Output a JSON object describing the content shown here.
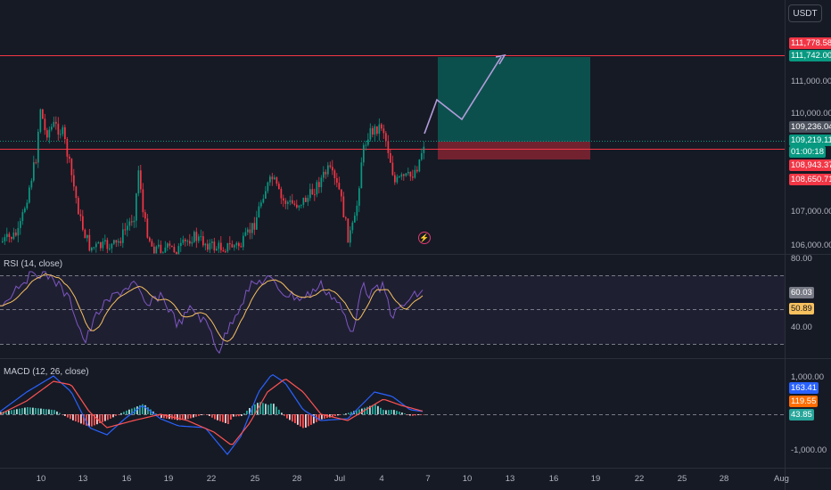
{
  "currency": "USDT",
  "main_pane": {
    "price_axis_labels": [
      "111,000.00",
      "110,000.00",
      "107,000.00",
      "106,000.00"
    ],
    "price_tags": [
      {
        "id": "stop-loss-target",
        "value": "111,778.58",
        "color": "#f23645"
      },
      {
        "id": "take-profit",
        "value": "111,742.00",
        "color": "#089981"
      },
      {
        "id": "entry-line",
        "value": "109,236.04",
        "color": "#4c525e"
      },
      {
        "id": "current-price",
        "value": "109,219.11",
        "color": "#089981"
      },
      {
        "id": "bar-countdown",
        "value": "01:00:18",
        "color": "#089981"
      },
      {
        "id": "stop-loss",
        "value": "108,943.37",
        "color": "#f23645"
      },
      {
        "id": "stop-loss-2",
        "value": "108,650.71",
        "color": "#f23645"
      }
    ],
    "lightning_icon": "lightning-icon"
  },
  "rsi_pane": {
    "title": "RSI (14, close)",
    "axis_labels": [
      "80.00",
      "40.00"
    ],
    "tags": [
      {
        "id": "rsi-value",
        "value": "60.03",
        "color": "#787b86"
      },
      {
        "id": "rsi-ma-value",
        "value": "50.89",
        "color": "#f7c15e",
        "text_color": "#131722"
      }
    ]
  },
  "macd_pane": {
    "title": "MACD (12, 26, close)",
    "axis_labels": [
      "1,000.00",
      "-1,000.00"
    ],
    "tags": [
      {
        "id": "macd-value",
        "value": "163.41",
        "color": "#2962ff"
      },
      {
        "id": "signal-value",
        "value": "119.55",
        "color": "#ff6d00"
      },
      {
        "id": "histogram-value",
        "value": "43.85",
        "color": "#26a69a"
      }
    ]
  },
  "time_axis": {
    "ticks": [
      "10",
      "13",
      "16",
      "19",
      "22",
      "25",
      "28",
      "Jul",
      "4",
      "7",
      "10",
      "13",
      "16",
      "19",
      "22",
      "25",
      "28",
      "Aug"
    ]
  },
  "colors": {
    "up": "#089981",
    "down": "#f23645",
    "rsi": "#7e57c2",
    "rsi_ma": "#f7c15e",
    "macd": "#2962ff",
    "signal": "#ff5252",
    "projection": "#b39ddb"
  }
}
